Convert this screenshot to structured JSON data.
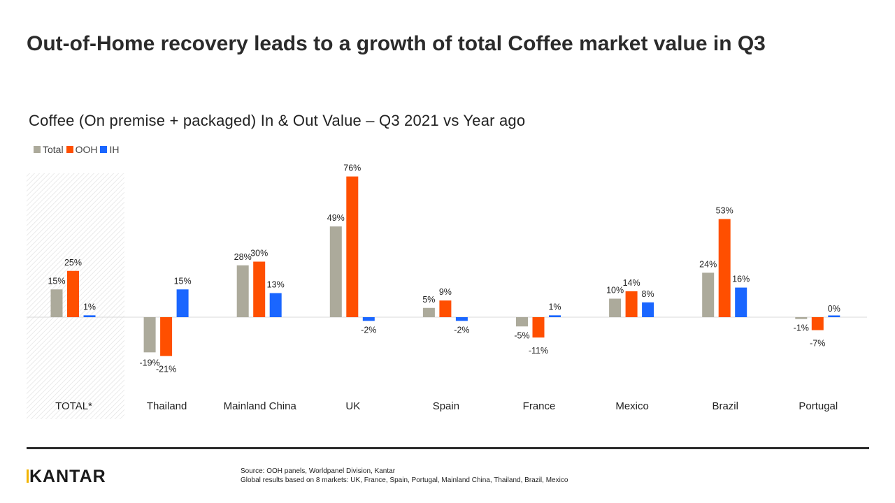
{
  "header": {
    "title": "Out-of-Home recovery leads to a growth of total Coffee market value in Q3",
    "subtitle": "Coffee (On premise + packaged) In & Out Value –  Q3 2021 vs Year ago"
  },
  "legend": [
    {
      "label": "Total",
      "color": "#acaa9b"
    },
    {
      "label": "OOH",
      "color": "#ff4f00"
    },
    {
      "label": "IH",
      "color": "#1a66ff"
    }
  ],
  "chart_data": {
    "type": "bar",
    "title": "Coffee (On premise + packaged) In & Out Value –  Q3 2021 vs Year ago",
    "categories": [
      "TOTAL*",
      "Thailand",
      "Mainland China",
      "UK",
      "Spain",
      "France",
      "Mexico",
      "Brazil",
      "Portugal"
    ],
    "series": [
      {
        "name": "Total",
        "values": [
          15,
          -19,
          28,
          49,
          5,
          -5,
          10,
          24,
          -1
        ]
      },
      {
        "name": "OOH",
        "values": [
          25,
          -21,
          30,
          76,
          9,
          -11,
          14,
          53,
          -7
        ]
      },
      {
        "name": "IH",
        "values": [
          1,
          15,
          13,
          -2,
          -2,
          1,
          8,
          16,
          0
        ]
      }
    ],
    "value_suffix": "%",
    "highlighted_category": "TOTAL*",
    "ylim": [
      -25,
      80
    ],
    "xlabel": "",
    "ylabel": "",
    "legend_position": "top-left"
  },
  "footer": {
    "logo": "KANTAR",
    "source_line1": "Source: OOH panels, Worldpanel Division, Kantar",
    "source_line2": "Global results based on 8 markets: UK, France, Spain, Portugal, Mainland China, Thailand, Brazil, Mexico"
  }
}
